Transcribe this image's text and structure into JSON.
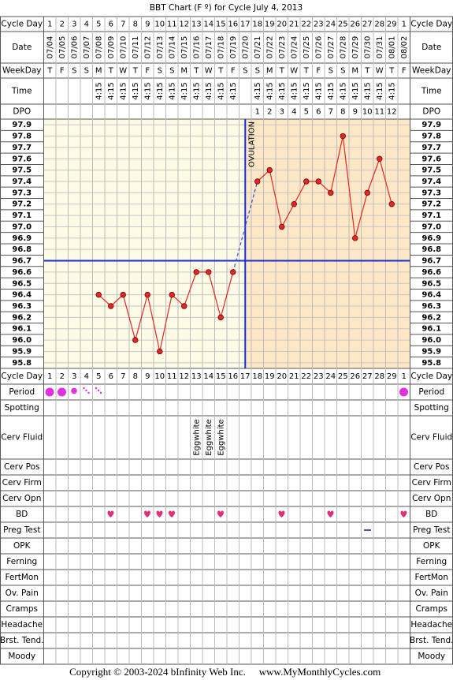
{
  "chart_data": {
    "type": "line",
    "title": "BBT Chart (F º) for Cycle July 4, 2013",
    "categories": [
      1,
      2,
      3,
      4,
      5,
      6,
      7,
      8,
      9,
      10,
      11,
      12,
      13,
      14,
      15,
      16,
      17,
      18,
      19,
      20,
      21,
      22,
      23,
      24,
      25,
      26,
      27,
      28,
      29,
      1
    ],
    "dates": [
      "07/04",
      "07/05",
      "07/06",
      "07/07",
      "07/08",
      "07/09",
      "07/10",
      "07/11",
      "07/12",
      "07/13",
      "07/14",
      "07/15",
      "07/16",
      "07/17",
      "07/18",
      "07/19",
      "07/20",
      "07/21",
      "07/22",
      "07/23",
      "07/24",
      "07/25",
      "07/26",
      "07/27",
      "07/28",
      "07/29",
      "07/30",
      "07/31",
      "08/01",
      "08/02"
    ],
    "weekdays": [
      "T",
      "F",
      "S",
      "S",
      "M",
      "T",
      "W",
      "T",
      "F",
      "S",
      "S",
      "M",
      "T",
      "W",
      "T",
      "F",
      "S",
      "S",
      "M",
      "T",
      "W",
      "T",
      "F",
      "S",
      "S",
      "M",
      "T",
      "W",
      "T",
      "F"
    ],
    "times": [
      null,
      null,
      null,
      null,
      "4:15",
      "4:15",
      "4:15",
      "4:15",
      "4:15",
      "4:15",
      "4:15",
      "4:15",
      "4:15",
      "4:15",
      "4:15",
      "4:15",
      null,
      "4:15",
      "4:15",
      "4:15",
      "4:15",
      "4:15",
      "4:15",
      "4:15",
      "4:15",
      "4:15",
      "4:15",
      "4:15",
      "4:15",
      null
    ],
    "dpo": [
      null,
      null,
      null,
      null,
      null,
      null,
      null,
      null,
      null,
      null,
      null,
      null,
      null,
      null,
      null,
      null,
      null,
      1,
      2,
      3,
      4,
      5,
      6,
      7,
      8,
      9,
      10,
      11,
      12,
      null
    ],
    "values": [
      null,
      null,
      null,
      null,
      96.4,
      96.3,
      96.4,
      96.0,
      96.4,
      95.9,
      96.4,
      96.3,
      96.6,
      96.6,
      96.2,
      96.6,
      null,
      97.4,
      97.5,
      97.0,
      97.2,
      97.4,
      97.4,
      97.3,
      97.8,
      96.9,
      97.3,
      97.6,
      97.2,
      null
    ],
    "color": "#e02828",
    "coverline": 96.7,
    "ovulation_day": 17,
    "ovulation_label": "OVULATION",
    "ylim": [
      95.75,
      97.95
    ],
    "yticks": [
      95.8,
      95.9,
      {
        "value": 96.0,
        "label": "96.0"
      },
      96.1,
      96.2,
      96.3,
      96.4,
      96.5,
      96.6,
      96.7,
      96.8,
      96.9,
      {
        "value": 97.0,
        "label": "97.0"
      },
      97.1,
      97.2,
      97.3,
      97.4,
      97.5,
      97.6,
      97.7,
      97.8,
      97.9
    ],
    "grid": true,
    "top_row_labels": [
      "Cycle Day",
      "Date",
      "WeekDay",
      "Time",
      "DPO"
    ],
    "bottom_row_labels": [
      "Cycle Day",
      "Period",
      "Spotting",
      "Cerv Fluid",
      "Cerv Pos",
      "Cerv Firm",
      "Cerv Opn",
      "BD",
      "Preg Test",
      "OPK",
      "Ferning",
      "FertMon",
      "Ov. Pain",
      "Cramps",
      "Headache",
      "Brst. Tend.",
      "Moody"
    ],
    "cerv_fluid": [
      null,
      null,
      null,
      null,
      null,
      null,
      null,
      null,
      null,
      null,
      null,
      null,
      "Eggwhite",
      "Eggwhite",
      "Eggwhite",
      null,
      null,
      null,
      null,
      null,
      null,
      null,
      null,
      null,
      null,
      null,
      null,
      null,
      null,
      null
    ]
  },
  "footer": {
    "copyright": "Copyright © 2003-2024 bInfinity Web Inc.",
    "site": "www.MyMonthlyCycles.com"
  }
}
